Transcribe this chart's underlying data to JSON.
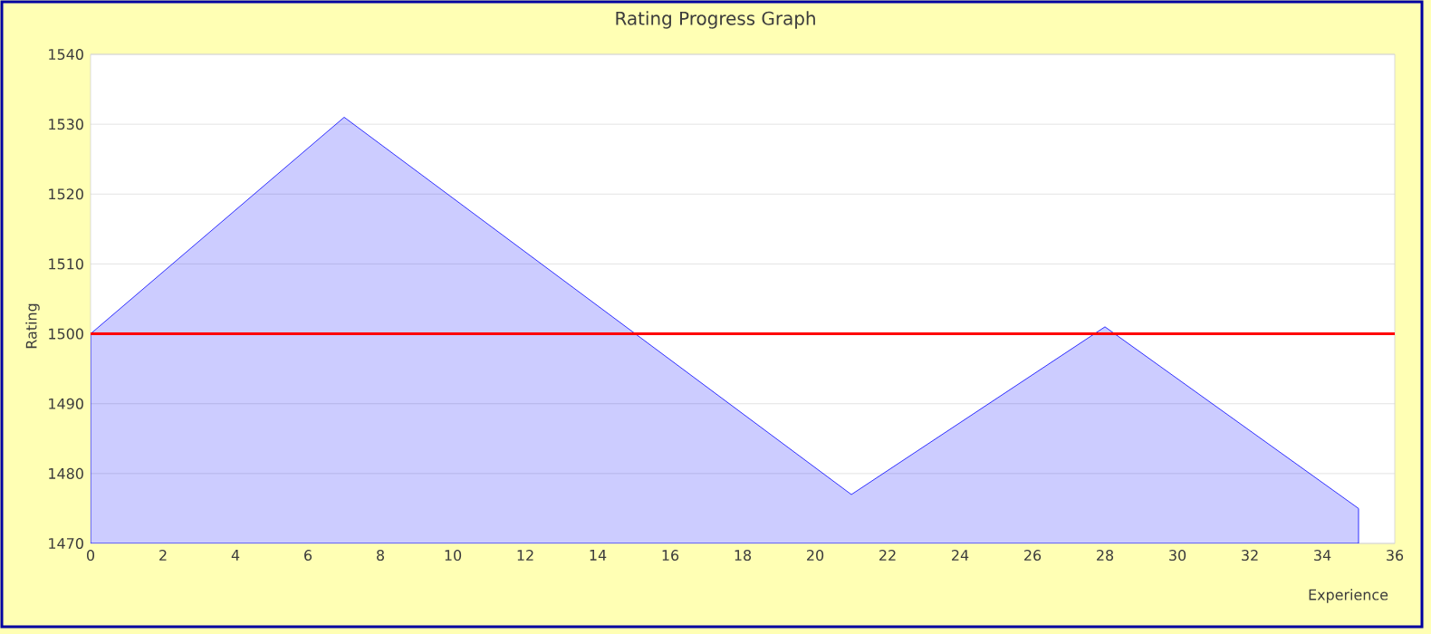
{
  "chart_data": {
    "type": "area",
    "title": "Rating Progress Graph",
    "xlabel": "Experience",
    "ylabel": "Rating",
    "x": [
      0,
      7,
      21,
      28,
      35
    ],
    "series": [
      {
        "color": "#0000ff",
        "values": [
          1500,
          1531,
          1477,
          1501,
          1475
        ]
      }
    ],
    "xlim": [
      0,
      36
    ],
    "xticks": [
      0,
      2,
      4,
      6,
      8,
      10,
      12,
      14,
      16,
      18,
      20,
      22,
      24,
      26,
      28,
      30,
      32,
      34,
      36
    ],
    "ylim": [
      1470,
      1540
    ],
    "yticks": [
      1470,
      1480,
      1490,
      1500,
      1510,
      1520,
      1530,
      1540
    ],
    "grid": "y",
    "ref_lines": [
      {
        "axis": "y",
        "value": 1500,
        "color": "#ff0000"
      }
    ]
  }
}
